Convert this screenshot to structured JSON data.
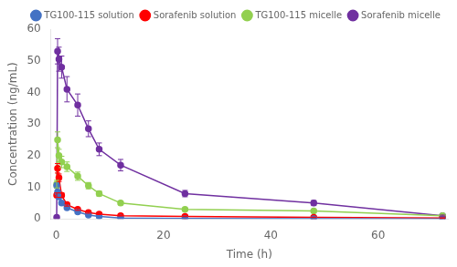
{
  "chart_data": {
    "type": "line",
    "xlabel": "Time (h)",
    "ylabel": "Concentration (ng/mL)",
    "xlim": [
      -1,
      73
    ],
    "ylim": [
      0,
      60
    ],
    "xticks": [
      0,
      20,
      40,
      60
    ],
    "yticks": [
      0,
      10,
      20,
      30,
      40,
      50,
      60
    ],
    "grid": false,
    "legend": "upper right",
    "marker": "circle",
    "x": [
      0.083,
      0.25,
      0.5,
      1,
      2,
      4,
      6,
      8,
      12,
      24,
      48,
      72
    ],
    "series": [
      {
        "name": "TG100-115 solution",
        "color": "#4472C4",
        "values": [
          10.5,
          8.5,
          7.0,
          5.0,
          3.5,
          2.2,
          1.2,
          0.8,
          0.3,
          0.15,
          0.05,
          0.02
        ],
        "err": [
          0.8,
          0.7,
          0.6,
          0.5,
          0.35,
          0.25,
          0.15,
          0.1,
          0.05,
          0.03,
          0.01,
          0.005
        ]
      },
      {
        "name": "Sorafenib solution",
        "color": "#FF0000",
        "values": [
          7.5,
          16.0,
          13.0,
          7.5,
          4.5,
          3.0,
          2.0,
          1.5,
          1.0,
          0.8,
          0.5,
          0.3
        ],
        "err": [
          0.7,
          1.5,
          1.2,
          0.7,
          0.45,
          0.3,
          0.2,
          0.15,
          0.1,
          0.08,
          0.05,
          0.03
        ]
      },
      {
        "name": "TG100-115 micelle",
        "color": "#92D050",
        "values": [
          11.0,
          25.0,
          20.0,
          18.0,
          16.5,
          13.5,
          10.5,
          8.0,
          5.0,
          3.0,
          2.5,
          1.0
        ],
        "err": [
          1.2,
          2.5,
          2.0,
          1.8,
          1.5,
          1.3,
          1.0,
          0.8,
          0.6,
          0.4,
          0.35,
          0.15
        ]
      },
      {
        "name": "Sorafenib micelle",
        "color": "#7030A0",
        "values": [
          0.5,
          53.0,
          50.5,
          48.0,
          41.0,
          36.0,
          28.5,
          22.0,
          17.0,
          8.0,
          5.0,
          1.0
        ],
        "err": [
          0.05,
          4.0,
          3.8,
          3.5,
          4.0,
          3.5,
          2.5,
          2.0,
          1.8,
          1.0,
          0.8,
          0.2
        ]
      }
    ]
  }
}
